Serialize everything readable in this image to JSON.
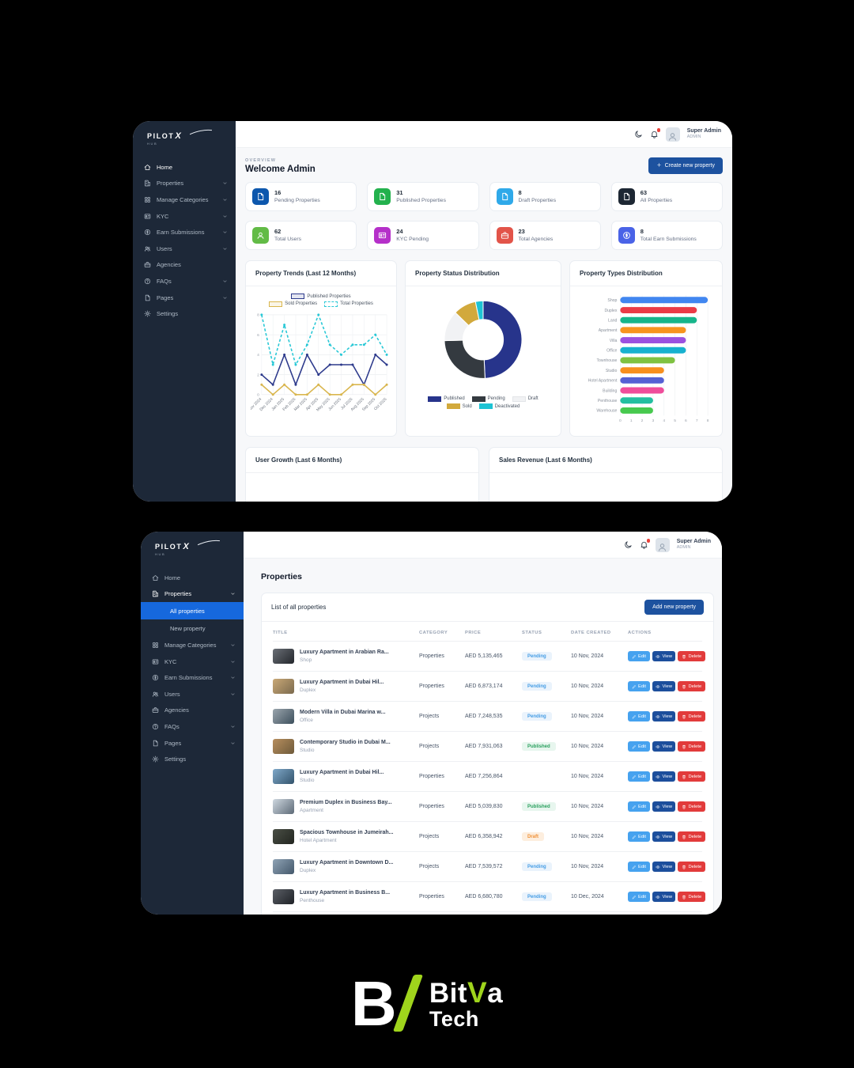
{
  "user": {
    "name": "Super Admin",
    "role": "ADMIN"
  },
  "sidebar": {
    "logo": {
      "word": "PILOT",
      "x": "X",
      "sub": "HUB"
    },
    "items": [
      {
        "label": "Home",
        "icon": "home",
        "expandable": false
      },
      {
        "label": "Properties",
        "icon": "building",
        "expandable": true,
        "children": [
          {
            "label": "All properties"
          },
          {
            "label": "New property"
          }
        ]
      },
      {
        "label": "Manage Categories",
        "icon": "grid",
        "expandable": true
      },
      {
        "label": "KYC",
        "icon": "idcard",
        "expandable": true
      },
      {
        "label": "Earn Submissions",
        "icon": "coin",
        "expandable": true
      },
      {
        "label": "Users",
        "icon": "users",
        "expandable": true
      },
      {
        "label": "Agencies",
        "icon": "briefcase",
        "expandable": false
      },
      {
        "label": "FAQs",
        "icon": "help",
        "expandable": true
      },
      {
        "label": "Pages",
        "icon": "page",
        "expandable": true
      },
      {
        "label": "Settings",
        "icon": "gear",
        "expandable": false
      }
    ]
  },
  "dashboard": {
    "overview_label": "OVERVIEW",
    "title": "Welcome Admin",
    "create_button": "Create new property",
    "stats": [
      {
        "value": "16",
        "label": "Pending Properties",
        "color": "#0d57ad",
        "icon": "page"
      },
      {
        "value": "31",
        "label": "Published Properties",
        "color": "#23b14d",
        "icon": "page"
      },
      {
        "value": "8",
        "label": "Draft Properties",
        "color": "#2fa9e9",
        "icon": "page"
      },
      {
        "value": "63",
        "label": "All Properties",
        "color": "#1d2733",
        "icon": "page"
      },
      {
        "value": "62",
        "label": "Total Users",
        "color": "#62bb46",
        "icon": "person"
      },
      {
        "value": "24",
        "label": "KYC Pending",
        "color": "#b530c9",
        "icon": "idcard"
      },
      {
        "value": "23",
        "label": "Total Agencies",
        "color": "#e25449",
        "icon": "briefcase"
      },
      {
        "value": "8",
        "label": "Total Earn Submissions",
        "color": "#4a63e7",
        "icon": "coin"
      }
    ],
    "bottom_cards": [
      "User Growth (Last 6 Months)",
      "Sales Revenue (Last 6 Months)"
    ]
  },
  "chart_data": [
    {
      "type": "line",
      "title": "Property Trends (Last 12 Months)",
      "x": [
        "Nov 2024",
        "Dec 2024",
        "Jan 2025",
        "Feb 2025",
        "Mar 2025",
        "Apr 2025",
        "May 2025",
        "Jun 2025",
        "Jul 2025",
        "Aug 2025",
        "Sep 2025",
        "Oct 2025"
      ],
      "series": [
        {
          "name": "Published Properties",
          "color": "#2d3a8c",
          "dashed": false,
          "values": [
            2,
            1,
            4,
            1,
            4,
            2,
            3,
            3,
            3,
            1,
            4,
            3
          ]
        },
        {
          "name": "Sold Properties",
          "color": "#d9b64e",
          "dashed": false,
          "values": [
            1,
            0,
            1,
            0,
            0,
            1,
            0,
            0,
            1,
            1,
            0,
            1
          ]
        },
        {
          "name": "Total Properties",
          "color": "#29c8d6",
          "dashed": true,
          "values": [
            8,
            3,
            7,
            3,
            5,
            8,
            5,
            4,
            5,
            5,
            6,
            4
          ]
        }
      ],
      "ylim": [
        0,
        8
      ],
      "yticks": [
        0,
        2,
        4,
        6,
        8
      ],
      "grid": true,
      "legend_position": "top"
    },
    {
      "type": "pie",
      "title": "Property Status Distribution",
      "labels": [
        "Published",
        "Pending",
        "Draft",
        "Sold",
        "Deactivated"
      ],
      "values": [
        31,
        16,
        8,
        6,
        2
      ],
      "colors": [
        "#27348b",
        "#343a40",
        "#f1f2f4",
        "#d2a93c",
        "#1ec3d4"
      ],
      "donut": true,
      "legend_position": "bottom"
    },
    {
      "type": "bar",
      "title": "Property Types Distribution",
      "orientation": "horizontal",
      "categories": [
        "Shop",
        "Duplex",
        "Land",
        "Apartment",
        "Villa",
        "Office",
        "Townhouse",
        "Studio",
        "Hotel Apartment",
        "Building",
        "Penthouse",
        "Warehouse"
      ],
      "values": [
        8,
        7,
        7,
        6,
        6,
        6,
        5,
        4,
        4,
        4,
        3,
        3
      ],
      "colors": [
        "#4186f0",
        "#ea3b46",
        "#16b58a",
        "#f7941e",
        "#9b51e0",
        "#17b1cf",
        "#7fc241",
        "#f78f1e",
        "#5560d4",
        "#ef4d9b",
        "#23bfa0",
        "#47c94e"
      ],
      "xlim": [
        0,
        8
      ],
      "xticks": [
        0,
        1,
        2,
        3,
        4,
        5,
        6,
        7,
        8
      ],
      "grid": true
    }
  ],
  "properties_page": {
    "title": "Properties",
    "card_title": "List of all properties",
    "add_button": "Add new property",
    "table": {
      "columns": [
        "TITLE",
        "CATEGORY",
        "PRICE",
        "STATUS",
        "DATE CREATED",
        "ACTIONS"
      ],
      "actions": [
        {
          "label": "Edit",
          "icon": "pencil",
          "color": "#46a2ef"
        },
        {
          "label": "View",
          "icon": "eye",
          "color": "#1c4e9c"
        },
        {
          "label": "Delete",
          "icon": "trash",
          "color": "#e23b3b"
        }
      ],
      "status_styles": {
        "Pending": {
          "bg": "#eaf3fc",
          "fg": "#459de5"
        },
        "Published": {
          "bg": "#e7f6ee",
          "fg": "#2ba05f"
        },
        "Draft": {
          "bg": "#fdeede",
          "fg": "#ef9036"
        }
      },
      "rows": [
        {
          "title": "Luxury Apartment in Arabian Ra...",
          "subtitle": "Shop",
          "category": "Properties",
          "price": "AED 5,135,465",
          "status": "Pending",
          "date": "10 Nov, 2024",
          "thumb": [
            "#6a6f76",
            "#23262b"
          ]
        },
        {
          "title": "Luxury Apartment in Dubai Hil...",
          "subtitle": "Duplex",
          "category": "Properties",
          "price": "AED 6,873,174",
          "status": "Pending",
          "date": "10 Nov, 2024",
          "thumb": [
            "#c9a876",
            "#7b6a4e"
          ]
        },
        {
          "title": "Modern Villa in Dubai Marina w...",
          "subtitle": "Office",
          "category": "Projects",
          "price": "AED 7,248,535",
          "status": "Pending",
          "date": "10 Nov, 2024",
          "thumb": [
            "#9aa5ad",
            "#3d4f5c"
          ]
        },
        {
          "title": "Contemporary Studio in Dubai M...",
          "subtitle": "Studio",
          "category": "Projects",
          "price": "AED 7,931,063",
          "status": "Published",
          "date": "10 Nov, 2024",
          "thumb": [
            "#b78e5e",
            "#6e5a3a"
          ]
        },
        {
          "title": "Luxury Apartment in Dubai Hil...",
          "subtitle": "Studio",
          "category": "Properties",
          "price": "AED 7,256,864",
          "status": "",
          "date": "10 Nov, 2024",
          "thumb": [
            "#7fa8c9",
            "#33536b"
          ]
        },
        {
          "title": "Premium Duplex in Business Bay...",
          "subtitle": "Apartment",
          "category": "Properties",
          "price": "AED 5,039,830",
          "status": "Published",
          "date": "10 Nov, 2024",
          "thumb": [
            "#cfd8e0",
            "#5d6a77"
          ]
        },
        {
          "title": "Spacious Townhouse in Jumeirah...",
          "subtitle": "Hotel Apartment",
          "category": "Projects",
          "price": "AED 6,358,942",
          "status": "Draft",
          "date": "10 Nov, 2024",
          "thumb": [
            "#4a4f46",
            "#22251f"
          ]
        },
        {
          "title": "Luxury Apartment in Downtown D...",
          "subtitle": "Duplex",
          "category": "Projects",
          "price": "AED 7,539,572",
          "status": "Pending",
          "date": "10 Nov, 2024",
          "thumb": [
            "#8fa3b5",
            "#44586b"
          ]
        },
        {
          "title": "Luxury Apartment in Business B...",
          "subtitle": "Penthouse",
          "category": "Properties",
          "price": "AED 6,680,780",
          "status": "Pending",
          "date": "10 Dec, 2024",
          "thumb": [
            "#5b5f66",
            "#1e2126"
          ]
        },
        {
          "title": "",
          "subtitle": "",
          "category": "",
          "price": "",
          "status": "",
          "date": "",
          "thumb": [
            "#7fa8c9",
            "#4a6b85"
          ]
        }
      ]
    }
  },
  "footer": {
    "mark": "B",
    "bit": "Bit",
    "v": "V",
    "a": "a",
    "tech": "Tech",
    "green": "#9fd41c"
  }
}
